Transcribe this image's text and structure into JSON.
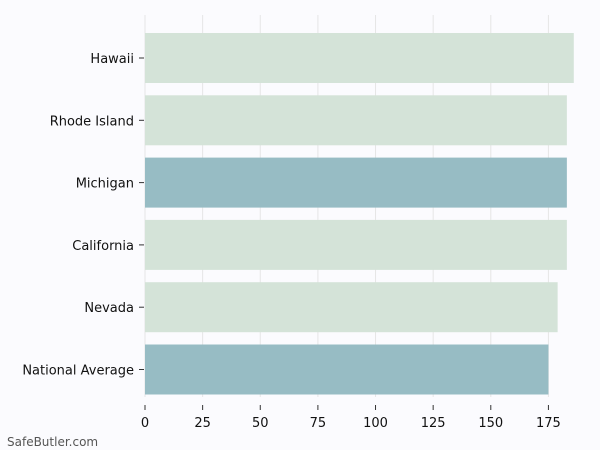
{
  "watermark": "SafeButler.com",
  "colors": {
    "background": "#fbfbfe",
    "bar_default": "#d4e3d8",
    "bar_highlight": "#97bcc4",
    "grid": "#e6e6e6",
    "axis_text": "#111111"
  },
  "chart_data": {
    "type": "bar",
    "orientation": "horizontal",
    "categories": [
      "Hawaii",
      "Rhode Island",
      "Michigan",
      "California",
      "Nevada",
      "National Average"
    ],
    "values": [
      186,
      183,
      183,
      183,
      179,
      175
    ],
    "highlighted": [
      "Michigan",
      "National Average"
    ],
    "xlim": [
      0,
      190
    ],
    "xticks": [
      0,
      25,
      50,
      75,
      100,
      125,
      150,
      175
    ],
    "grid": true,
    "title": "",
    "xlabel": "",
    "ylabel": ""
  }
}
